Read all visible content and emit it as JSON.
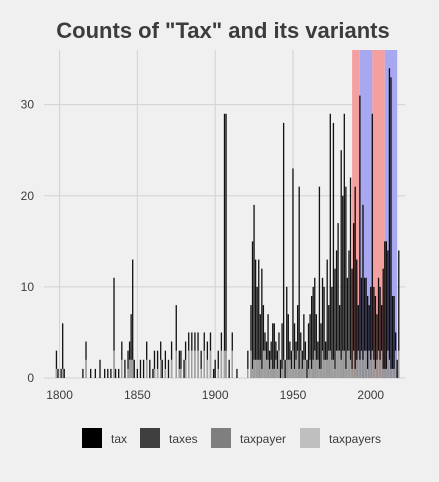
{
  "chart_data": {
    "type": "bar",
    "title": "Counts of \"Tax\" and its variants",
    "xlabel": "",
    "ylabel": "",
    "xlim": [
      1790,
      2022
    ],
    "ylim": [
      0,
      36
    ],
    "x_ticks": [
      1800,
      1850,
      1900,
      1950,
      2000
    ],
    "y_ticks": [
      0,
      10,
      20,
      30
    ],
    "grid": true,
    "legend_position": "bottom",
    "series": [
      {
        "name": "tax",
        "color": "#000000"
      },
      {
        "name": "taxes",
        "color": "#3f3f3f"
      },
      {
        "name": "taxpayer",
        "color": "#7f7f7f"
      },
      {
        "name": "taxpayers",
        "color": "#bfbfbf"
      }
    ],
    "highlight_bands": [
      {
        "x_start": 1988,
        "x_end": 1993,
        "color": "#f4a0a0"
      },
      {
        "x_start": 1993,
        "x_end": 2001,
        "color": "#a8a8f0"
      },
      {
        "x_start": 2001,
        "x_end": 2009,
        "color": "#f4a0a0"
      },
      {
        "x_start": 2009,
        "x_end": 2017,
        "color": "#a8a8f0"
      }
    ],
    "bars": [
      {
        "x": 1798,
        "y": 3
      },
      {
        "x": 1799,
        "y": 1
      },
      {
        "x": 1801,
        "y": 1
      },
      {
        "x": 1802,
        "y": 6
      },
      {
        "x": 1803,
        "y": 1
      },
      {
        "x": 1815,
        "y": 1
      },
      {
        "x": 1817,
        "y": 4
      },
      {
        "x": 1820,
        "y": 1
      },
      {
        "x": 1823,
        "y": 1
      },
      {
        "x": 1826,
        "y": 2
      },
      {
        "x": 1829,
        "y": 1
      },
      {
        "x": 1831,
        "y": 1
      },
      {
        "x": 1833,
        "y": 1
      },
      {
        "x": 1835,
        "y": 11
      },
      {
        "x": 1836,
        "y": 1
      },
      {
        "x": 1838,
        "y": 1
      },
      {
        "x": 1840,
        "y": 4
      },
      {
        "x": 1842,
        "y": 2
      },
      {
        "x": 1844,
        "y": 3
      },
      {
        "x": 1845,
        "y": 4
      },
      {
        "x": 1846,
        "y": 7
      },
      {
        "x": 1847,
        "y": 13
      },
      {
        "x": 1848,
        "y": 2
      },
      {
        "x": 1850,
        "y": 1
      },
      {
        "x": 1852,
        "y": 2
      },
      {
        "x": 1854,
        "y": 2
      },
      {
        "x": 1856,
        "y": 4
      },
      {
        "x": 1858,
        "y": 2
      },
      {
        "x": 1860,
        "y": 1
      },
      {
        "x": 1861,
        "y": 3
      },
      {
        "x": 1863,
        "y": 3
      },
      {
        "x": 1865,
        "y": 4
      },
      {
        "x": 1866,
        "y": 2
      },
      {
        "x": 1868,
        "y": 3
      },
      {
        "x": 1870,
        "y": 2
      },
      {
        "x": 1872,
        "y": 4
      },
      {
        "x": 1875,
        "y": 8
      },
      {
        "x": 1877,
        "y": 3
      },
      {
        "x": 1878,
        "y": 3
      },
      {
        "x": 1880,
        "y": 2
      },
      {
        "x": 1881,
        "y": 4
      },
      {
        "x": 1883,
        "y": 5
      },
      {
        "x": 1885,
        "y": 5
      },
      {
        "x": 1887,
        "y": 5
      },
      {
        "x": 1889,
        "y": 5
      },
      {
        "x": 1891,
        "y": 3
      },
      {
        "x": 1893,
        "y": 5
      },
      {
        "x": 1895,
        "y": 4
      },
      {
        "x": 1897,
        "y": 5
      },
      {
        "x": 1899,
        "y": 1
      },
      {
        "x": 1900,
        "y": 2
      },
      {
        "x": 1902,
        "y": 3
      },
      {
        "x": 1904,
        "y": 5
      },
      {
        "x": 1906,
        "y": 29
      },
      {
        "x": 1907,
        "y": 29
      },
      {
        "x": 1909,
        "y": 2
      },
      {
        "x": 1911,
        "y": 5
      },
      {
        "x": 1914,
        "y": 1
      },
      {
        "x": 1921,
        "y": 3
      },
      {
        "x": 1923,
        "y": 8
      },
      {
        "x": 1924,
        "y": 15
      },
      {
        "x": 1925,
        "y": 19
      },
      {
        "x": 1926,
        "y": 13
      },
      {
        "x": 1927,
        "y": 10
      },
      {
        "x": 1928,
        "y": 13
      },
      {
        "x": 1929,
        "y": 7
      },
      {
        "x": 1930,
        "y": 12
      },
      {
        "x": 1931,
        "y": 8
      },
      {
        "x": 1932,
        "y": 5
      },
      {
        "x": 1933,
        "y": 4
      },
      {
        "x": 1934,
        "y": 7
      },
      {
        "x": 1935,
        "y": 3
      },
      {
        "x": 1936,
        "y": 4
      },
      {
        "x": 1937,
        "y": 6
      },
      {
        "x": 1938,
        "y": 6
      },
      {
        "x": 1939,
        "y": 4
      },
      {
        "x": 1940,
        "y": 3
      },
      {
        "x": 1941,
        "y": 5
      },
      {
        "x": 1942,
        "y": 2
      },
      {
        "x": 1943,
        "y": 6
      },
      {
        "x": 1944,
        "y": 28
      },
      {
        "x": 1945,
        "y": 2
      },
      {
        "x": 1946,
        "y": 10
      },
      {
        "x": 1947,
        "y": 7
      },
      {
        "x": 1948,
        "y": 4
      },
      {
        "x": 1949,
        "y": 3
      },
      {
        "x": 1950,
        "y": 23
      },
      {
        "x": 1951,
        "y": 6
      },
      {
        "x": 1952,
        "y": 4
      },
      {
        "x": 1953,
        "y": 8
      },
      {
        "x": 1954,
        "y": 21
      },
      {
        "x": 1955,
        "y": 5
      },
      {
        "x": 1956,
        "y": 3
      },
      {
        "x": 1957,
        "y": 7
      },
      {
        "x": 1958,
        "y": 4
      },
      {
        "x": 1959,
        "y": 2
      },
      {
        "x": 1960,
        "y": 6
      },
      {
        "x": 1961,
        "y": 7
      },
      {
        "x": 1962,
        "y": 9
      },
      {
        "x": 1963,
        "y": 10
      },
      {
        "x": 1964,
        "y": 11
      },
      {
        "x": 1965,
        "y": 7
      },
      {
        "x": 1966,
        "y": 4
      },
      {
        "x": 1967,
        "y": 21
      },
      {
        "x": 1968,
        "y": 6
      },
      {
        "x": 1969,
        "y": 11
      },
      {
        "x": 1970,
        "y": 10
      },
      {
        "x": 1971,
        "y": 4
      },
      {
        "x": 1972,
        "y": 13
      },
      {
        "x": 1973,
        "y": 8
      },
      {
        "x": 1974,
        "y": 29
      },
      {
        "x": 1975,
        "y": 10
      },
      {
        "x": 1976,
        "y": 28
      },
      {
        "x": 1977,
        "y": 12
      },
      {
        "x": 1978,
        "y": 14
      },
      {
        "x": 1979,
        "y": 17
      },
      {
        "x": 1980,
        "y": 8
      },
      {
        "x": 1981,
        "y": 25
      },
      {
        "x": 1982,
        "y": 20
      },
      {
        "x": 1983,
        "y": 29
      },
      {
        "x": 1984,
        "y": 21
      },
      {
        "x": 1985,
        "y": 11
      },
      {
        "x": 1986,
        "y": 14
      },
      {
        "x": 1987,
        "y": 22
      },
      {
        "x": 1988,
        "y": 12
      },
      {
        "x": 1989,
        "y": 17
      },
      {
        "x": 1990,
        "y": 21
      },
      {
        "x": 1991,
        "y": 13
      },
      {
        "x": 1992,
        "y": 8
      },
      {
        "x": 1993,
        "y": 31
      },
      {
        "x": 1994,
        "y": 11
      },
      {
        "x": 1995,
        "y": 19
      },
      {
        "x": 1996,
        "y": 11
      },
      {
        "x": 1997,
        "y": 11
      },
      {
        "x": 1998,
        "y": 9
      },
      {
        "x": 1999,
        "y": 8
      },
      {
        "x": 2000,
        "y": 10
      },
      {
        "x": 2001,
        "y": 29
      },
      {
        "x": 2002,
        "y": 10
      },
      {
        "x": 2003,
        "y": 9
      },
      {
        "x": 2004,
        "y": 7
      },
      {
        "x": 2005,
        "y": 11
      },
      {
        "x": 2006,
        "y": 10
      },
      {
        "x": 2007,
        "y": 8
      },
      {
        "x": 2008,
        "y": 12
      },
      {
        "x": 2009,
        "y": 15
      },
      {
        "x": 2010,
        "y": 15
      },
      {
        "x": 2011,
        "y": 14
      },
      {
        "x": 2012,
        "y": 34
      },
      {
        "x": 2013,
        "y": 33
      },
      {
        "x": 2014,
        "y": 9
      },
      {
        "x": 2015,
        "y": 9
      },
      {
        "x": 2016,
        "y": 5
      },
      {
        "x": 2017,
        "y": 2
      },
      {
        "x": 2018,
        "y": 14
      }
    ]
  }
}
